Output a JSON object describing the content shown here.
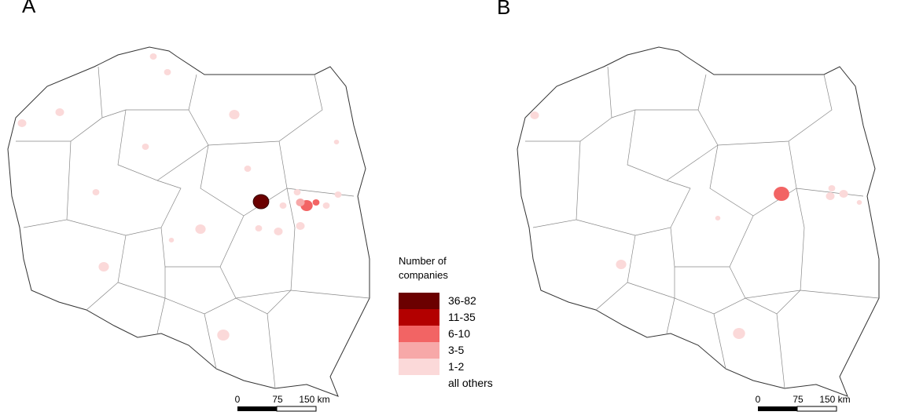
{
  "panels": [
    {
      "label": "A",
      "scale_bar": [
        "0",
        "75",
        "150 km"
      ]
    },
    {
      "label": "B",
      "scale_bar": [
        "0",
        "75",
        "150 km"
      ]
    }
  ],
  "legend": {
    "title": "Number of companies",
    "items": [
      {
        "label": "36-82",
        "color": "#6b0000"
      },
      {
        "label": "11-35",
        "color": "#b30000"
      },
      {
        "label": "6-10",
        "color": "#f26464"
      },
      {
        "label": "3-5",
        "color": "#f7a8a8"
      },
      {
        "label": "1-2",
        "color": "#fbd9d9"
      },
      {
        "label": "all others",
        "color": "#ffffff"
      }
    ]
  }
}
